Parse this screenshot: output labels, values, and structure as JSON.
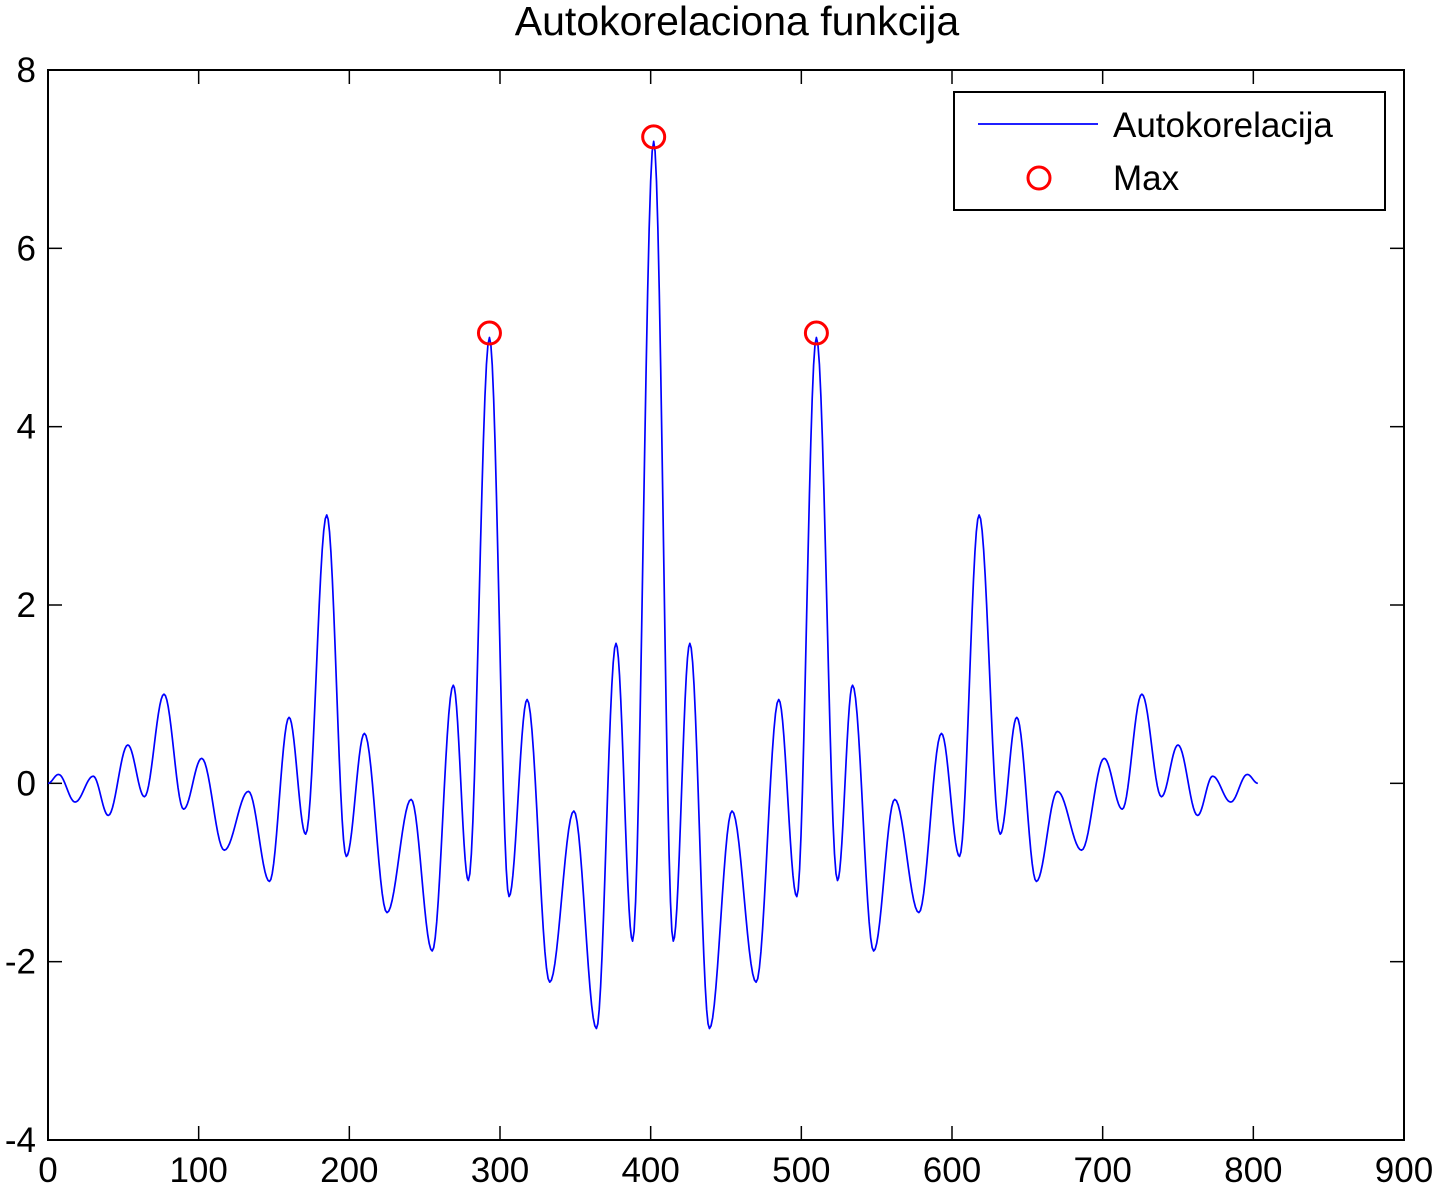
{
  "chart_data": {
    "type": "line",
    "title": "Autokorelaciona funkcija",
    "xlabel": "",
    "ylabel": "",
    "xlim": [
      0,
      900
    ],
    "ylim": [
      -4,
      8
    ],
    "xticks": [
      0,
      100,
      200,
      300,
      400,
      500,
      600,
      700,
      800,
      900
    ],
    "yticks": [
      -4,
      -2,
      0,
      2,
      4,
      6,
      8
    ],
    "grid": false,
    "legend_position": "top-right",
    "series": [
      {
        "name": "Autokorelacija",
        "style": "line",
        "color": "#0000ff",
        "points": [
          [
            0,
            0.0
          ],
          [
            7,
            0.1
          ],
          [
            18,
            -0.21
          ],
          [
            30,
            0.08
          ],
          [
            40,
            -0.36
          ],
          [
            53,
            0.43
          ],
          [
            64,
            -0.15
          ],
          [
            77,
            1.0
          ],
          [
            90,
            -0.29
          ],
          [
            102,
            0.28
          ],
          [
            117,
            -0.75
          ],
          [
            133,
            -0.09
          ],
          [
            147,
            -1.1
          ],
          [
            160,
            0.74
          ],
          [
            171,
            -0.57
          ],
          [
            185,
            3.01
          ],
          [
            198,
            -0.82
          ],
          [
            210,
            0.56
          ],
          [
            225,
            -1.45
          ],
          [
            241,
            -0.18
          ],
          [
            255,
            -1.88
          ],
          [
            269,
            1.1
          ],
          [
            279,
            -1.09
          ],
          [
            293,
            5.0
          ],
          [
            306,
            -1.27
          ],
          [
            318,
            0.94
          ],
          [
            333,
            -2.23
          ],
          [
            349,
            -0.31
          ],
          [
            364,
            -2.75
          ],
          [
            377,
            1.57
          ],
          [
            388,
            -1.77
          ],
          [
            402,
            7.2
          ],
          [
            415,
            -1.77
          ],
          [
            426,
            1.57
          ],
          [
            439,
            -2.75
          ],
          [
            454,
            -0.31
          ],
          [
            470,
            -2.23
          ],
          [
            485,
            0.94
          ],
          [
            497,
            -1.27
          ],
          [
            510,
            5.0
          ],
          [
            524,
            -1.09
          ],
          [
            534,
            1.1
          ],
          [
            548,
            -1.88
          ],
          [
            562,
            -0.18
          ],
          [
            578,
            -1.45
          ],
          [
            593,
            0.56
          ],
          [
            605,
            -0.82
          ],
          [
            618,
            3.01
          ],
          [
            632,
            -0.57
          ],
          [
            643,
            0.74
          ],
          [
            656,
            -1.1
          ],
          [
            670,
            -0.09
          ],
          [
            686,
            -0.75
          ],
          [
            701,
            0.28
          ],
          [
            713,
            -0.29
          ],
          [
            726,
            1.0
          ],
          [
            739,
            -0.15
          ],
          [
            750,
            0.43
          ],
          [
            763,
            -0.36
          ],
          [
            773,
            0.08
          ],
          [
            785,
            -0.21
          ],
          [
            796,
            0.1
          ],
          [
            803,
            0.0
          ]
        ]
      },
      {
        "name": "Max",
        "style": "marker",
        "marker": "circle",
        "color": "#ff0000",
        "points": [
          [
            293,
            5.05
          ],
          [
            402,
            7.25
          ],
          [
            510,
            5.05
          ]
        ]
      }
    ]
  }
}
